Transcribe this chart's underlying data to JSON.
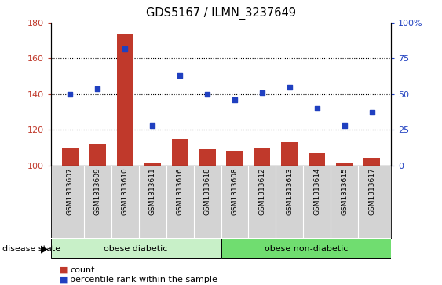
{
  "title": "GDS5167 / ILMN_3237649",
  "samples": [
    "GSM1313607",
    "GSM1313609",
    "GSM1313610",
    "GSM1313611",
    "GSM1313616",
    "GSM1313618",
    "GSM1313608",
    "GSM1313612",
    "GSM1313613",
    "GSM1313614",
    "GSM1313615",
    "GSM1313617"
  ],
  "counts": [
    110,
    112,
    174,
    101,
    115,
    109,
    108,
    110,
    113,
    107,
    101,
    104
  ],
  "percentile_ranks": [
    50,
    54,
    82,
    28,
    63,
    50,
    46,
    51,
    55,
    40,
    28,
    37
  ],
  "bar_color": "#c0392b",
  "dot_color": "#2040c0",
  "ylim_left": [
    100,
    180
  ],
  "ylim_right": [
    0,
    100
  ],
  "yticks_left": [
    100,
    120,
    140,
    160,
    180
  ],
  "yticks_right": [
    0,
    25,
    50,
    75,
    100
  ],
  "yticklabels_right": [
    "0",
    "25",
    "50",
    "75",
    "100%"
  ],
  "group1_label": "obese diabetic",
  "group2_label": "obese non-diabetic",
  "group1_count": 6,
  "group2_count": 6,
  "disease_state_label": "disease state",
  "legend_count_label": "count",
  "legend_percentile_label": "percentile rank within the sample",
  "group1_bg_color": "#c8f0c8",
  "group2_bg_color": "#70dd70",
  "tick_area_bg": "#d3d3d3",
  "grid_color": "black",
  "grid_linestyle": "dotted",
  "grid_linewidth": 0.8
}
